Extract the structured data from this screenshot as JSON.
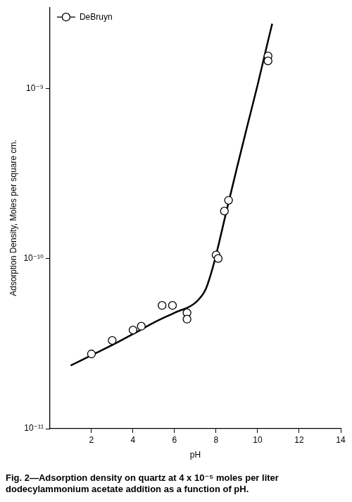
{
  "chart_data": {
    "type": "scatter",
    "title": "Fig. 2—Adsorption density on quartz at 4 x 10⁻⁵ moles per liter dodecylammonium acetate addition as a function of pH.",
    "x_label": "pH",
    "y_label": "Adsorption Density, Moles per square cm.",
    "xlim": [
      0,
      14
    ],
    "xticks": [
      2,
      4,
      6,
      8,
      10,
      12,
      14
    ],
    "ylim": [
      1e-11,
      3e-09
    ],
    "yticks": [
      {
        "value": 1e-11,
        "label": "10⁻¹¹"
      },
      {
        "value": 1e-10,
        "label": "10⁻¹⁰"
      },
      {
        "value": 1e-09,
        "label": "10⁻⁹"
      }
    ],
    "log": "y",
    "grid": false,
    "legend": "upper left",
    "series": [
      {
        "name": "DeBruyn",
        "type": "scatter",
        "marker": "circle",
        "color": "#000000",
        "x": [
          2.0,
          3.0,
          4.0,
          4.4,
          5.4,
          5.9,
          6.6,
          6.6,
          8.0,
          8.1,
          8.4,
          8.6,
          10.5,
          10.5
        ],
        "values": [
          2.75e-11,
          3.3e-11,
          3.8e-11,
          4e-11,
          5.3e-11,
          5.3e-11,
          4.8e-11,
          4.4e-11,
          1.05e-10,
          1e-10,
          1.9e-10,
          2.2e-10,
          1.55e-09,
          1.45e-09
        ]
      },
      {
        "type": "line",
        "line_style": "solid",
        "color": "#000000",
        "x": [
          1.0,
          2.0,
          3.0,
          4.0,
          5.0,
          6.0,
          7.0,
          7.5,
          7.8,
          8.0,
          8.5,
          9.0,
          9.5,
          10.0,
          10.5,
          10.7
        ],
        "values": [
          2.35e-11,
          2.7e-11,
          3.1e-11,
          3.6e-11,
          4.2e-11,
          4.8e-11,
          5.5e-11,
          6.6e-11,
          8.5e-11,
          1.05e-10,
          1.9e-10,
          3.4e-10,
          6e-10,
          1.05e-09,
          1.9e-09,
          2.4e-09
        ]
      }
    ]
  }
}
